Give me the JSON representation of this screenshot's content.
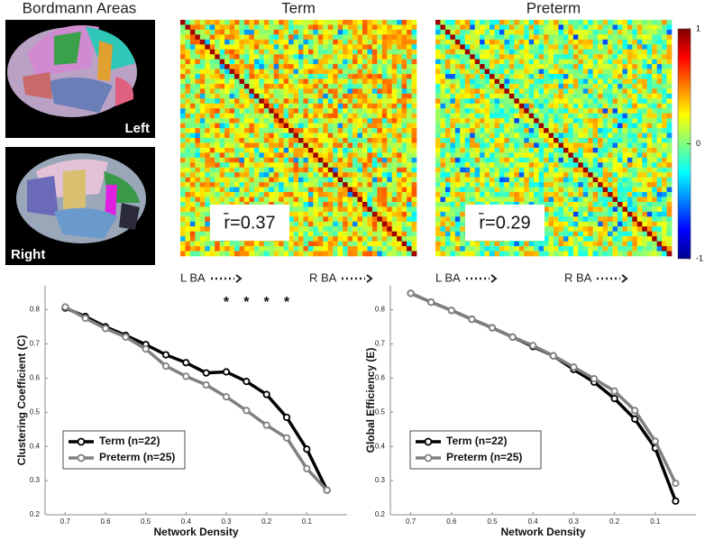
{
  "figure": {
    "brain_title": "Bordmann Areas",
    "left_label": "Left",
    "right_label": "Right",
    "matrices": [
      {
        "title": "Term",
        "r_label": "r̄=0.37",
        "left_axis": "L BA",
        "right_axis": "R BA"
      },
      {
        "title": "Preterm",
        "r_label": "r̄=0.29",
        "left_axis": "L BA",
        "right_axis": "R BA"
      }
    ],
    "colorbar": {
      "ticks": [
        1,
        0,
        -1
      ]
    }
  },
  "chart_data": [
    {
      "type": "line",
      "x_label": "Network Density",
      "y_label": "Clustering Coefficient (C)",
      "x": [
        0.7,
        0.65,
        0.6,
        0.55,
        0.5,
        0.45,
        0.4,
        0.35,
        0.3,
        0.25,
        0.2,
        0.15,
        0.1,
        0.05
      ],
      "series": [
        {
          "name": "Term (n=22)",
          "color": "#000000",
          "values": [
            0.805,
            0.78,
            0.75,
            0.725,
            0.698,
            0.668,
            0.645,
            0.615,
            0.618,
            0.59,
            0.552,
            0.485,
            0.392,
            0.272
          ]
        },
        {
          "name": "Preterm (n=25)",
          "color": "#808080",
          "values": [
            0.808,
            0.775,
            0.745,
            0.72,
            0.685,
            0.635,
            0.605,
            0.58,
            0.545,
            0.505,
            0.462,
            0.425,
            0.335,
            0.272
          ]
        }
      ],
      "xlim": [
        0.75,
        0
      ],
      "ylim": [
        0.2,
        0.87
      ],
      "xticks": [
        0.7,
        0.6,
        0.5,
        0.4,
        0.3,
        0.2,
        0.1
      ],
      "yticks": [
        0.2,
        0.3,
        0.4,
        0.5,
        0.6,
        0.7,
        0.8
      ],
      "legend": "lower-left",
      "annotations": [
        {
          "x": 0.3,
          "text": "*"
        },
        {
          "x": 0.25,
          "text": "*"
        },
        {
          "x": 0.2,
          "text": "*"
        },
        {
          "x": 0.15,
          "text": "*"
        }
      ]
    },
    {
      "type": "line",
      "x_label": "Network Density",
      "y_label": "Global Efficiency (E)",
      "x": [
        0.7,
        0.65,
        0.6,
        0.55,
        0.5,
        0.45,
        0.4,
        0.35,
        0.3,
        0.25,
        0.2,
        0.15,
        0.1,
        0.05
      ],
      "series": [
        {
          "name": "Term (n=22)",
          "color": "#000000",
          "values": [
            0.848,
            0.822,
            0.798,
            0.772,
            0.747,
            0.72,
            0.692,
            0.665,
            0.625,
            0.588,
            0.54,
            0.48,
            0.395,
            0.24
          ]
        },
        {
          "name": "Preterm (n=25)",
          "color": "#808080",
          "values": [
            0.848,
            0.822,
            0.798,
            0.772,
            0.747,
            0.72,
            0.695,
            0.665,
            0.632,
            0.598,
            0.562,
            0.505,
            0.415,
            0.292
          ]
        }
      ],
      "xlim": [
        0.75,
        0
      ],
      "ylim": [
        0.2,
        0.87
      ],
      "xticks": [
        0.7,
        0.6,
        0.5,
        0.4,
        0.3,
        0.2,
        0.1
      ],
      "yticks": [
        0.2,
        0.3,
        0.4,
        0.5,
        0.6,
        0.7,
        0.8
      ],
      "legend": "lower-left"
    }
  ]
}
